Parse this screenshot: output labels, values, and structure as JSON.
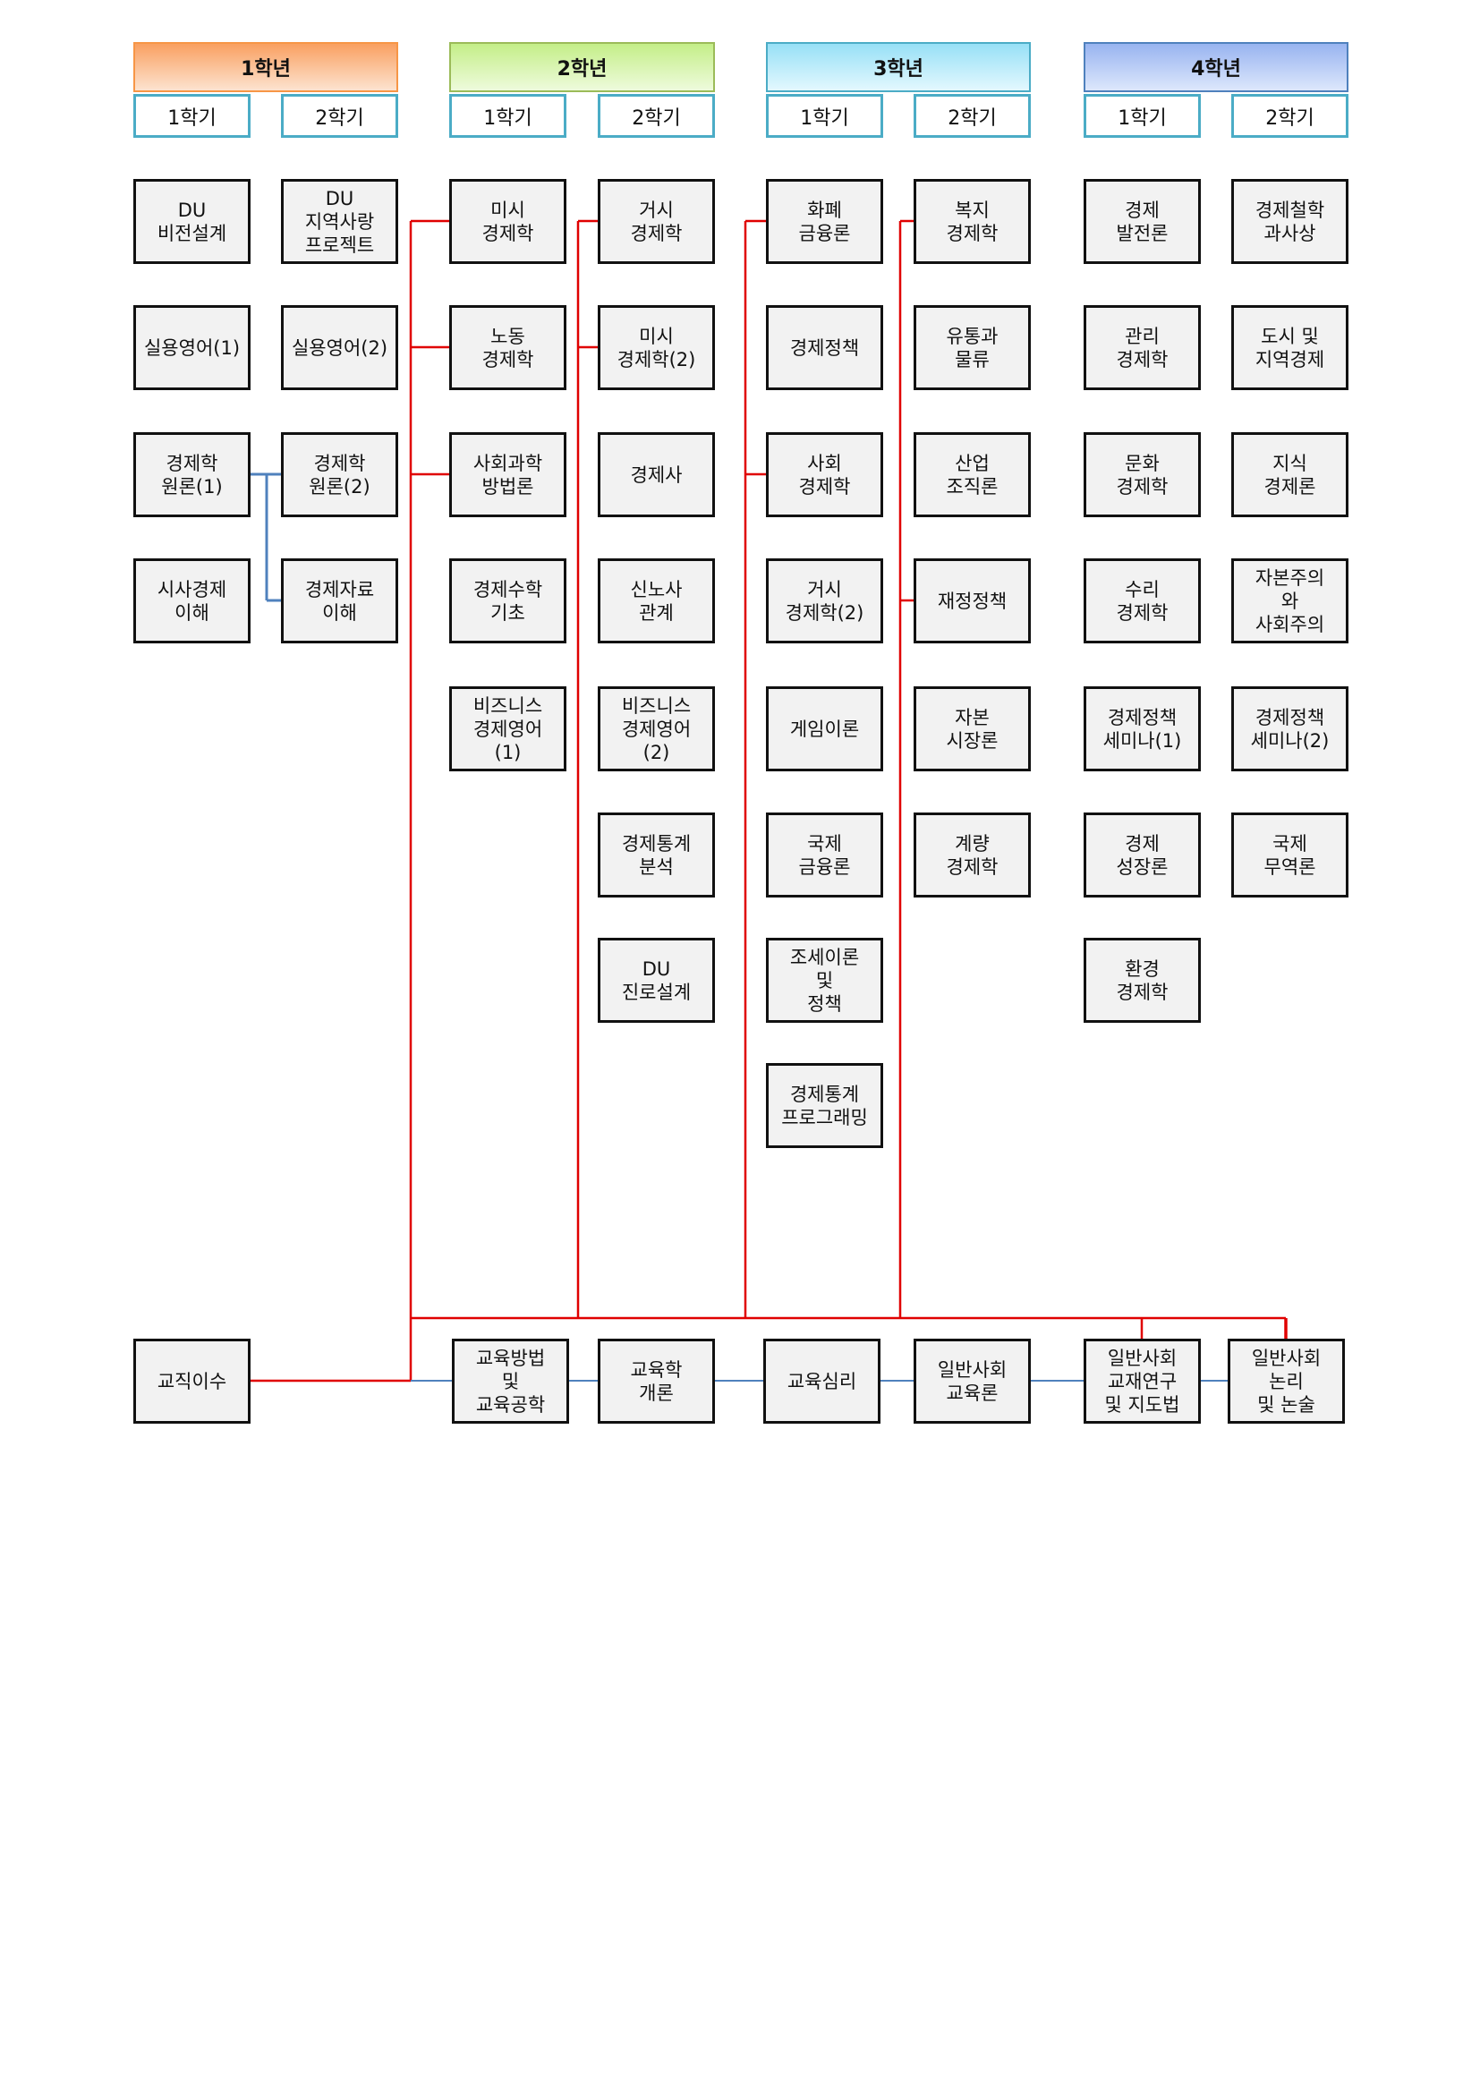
{
  "years": [
    {
      "label": "1학년",
      "colors": [
        "#f9a061",
        "#fde3d0"
      ],
      "border": "#f79646"
    },
    {
      "label": "2학년",
      "colors": [
        "#c4ee88",
        "#eefbdc"
      ],
      "border": "#9bbb59"
    },
    {
      "label": "3학년",
      "colors": [
        "#97e0f6",
        "#e3f8fe"
      ],
      "border": "#4bacc6"
    },
    {
      "label": "4학년",
      "colors": [
        "#98b4f0",
        "#dde7fc"
      ],
      "border": "#4f81bd"
    }
  ],
  "semesters": [
    "1학기",
    "2학기"
  ],
  "columns": [
    [
      "DU\n비전설계",
      "실용영어(1)",
      "경제학\n원론(1)",
      "시사경제\n이해"
    ],
    [
      "DU\n지역사랑\n프로젝트",
      "실용영어(2)",
      "경제학\n원론(2)",
      "경제자료\n이해"
    ],
    [
      "미시\n경제학",
      "노동\n경제학",
      "사회과학\n방법론",
      "경제수학\n기초",
      "비즈니스\n경제영어\n(1)"
    ],
    [
      "거시\n경제학",
      "미시\n경제학(2)",
      "경제사",
      "신노사\n관계",
      "비즈니스\n경제영어\n(2)",
      "경제통계\n분석",
      "DU\n진로설계"
    ],
    [
      "화폐\n금융론",
      "경제정책",
      "사회\n경제학",
      "거시\n경제학(2)",
      "게임이론",
      "국제\n금융론",
      "조세이론\n및\n정책",
      "경제통계\n프로그래밍"
    ],
    [
      "복지\n경제학",
      "유통과\n물류",
      "산업\n조직론",
      "재정정책",
      "자본\n시장론",
      "계량\n경제학"
    ],
    [
      "경제\n발전론",
      "관리\n경제학",
      "문화\n경제학",
      "수리\n경제학",
      "경제정책\n세미나(1)",
      "경제\n성장론",
      "환경\n경제학"
    ],
    [
      "경제철학\n과사상",
      "도시 및\n지역경제",
      "지식\n경제론",
      "자본주의\n와\n사회주의",
      "경제정책\n세미나(2)",
      "국제\n무역론"
    ]
  ],
  "teaching": {
    "start": "교직이수",
    "courses": [
      "교육방법\n및\n교육공학",
      "교육학\n개론",
      "교육심리",
      "일반사회\n교육론",
      "일반사회\n교재연구\n및 지도법",
      "일반사회\n논리\n및 논술"
    ]
  },
  "line_colors": {
    "prerequisite_red": "#e00000",
    "sequence_blue": "#4f81bd"
  }
}
